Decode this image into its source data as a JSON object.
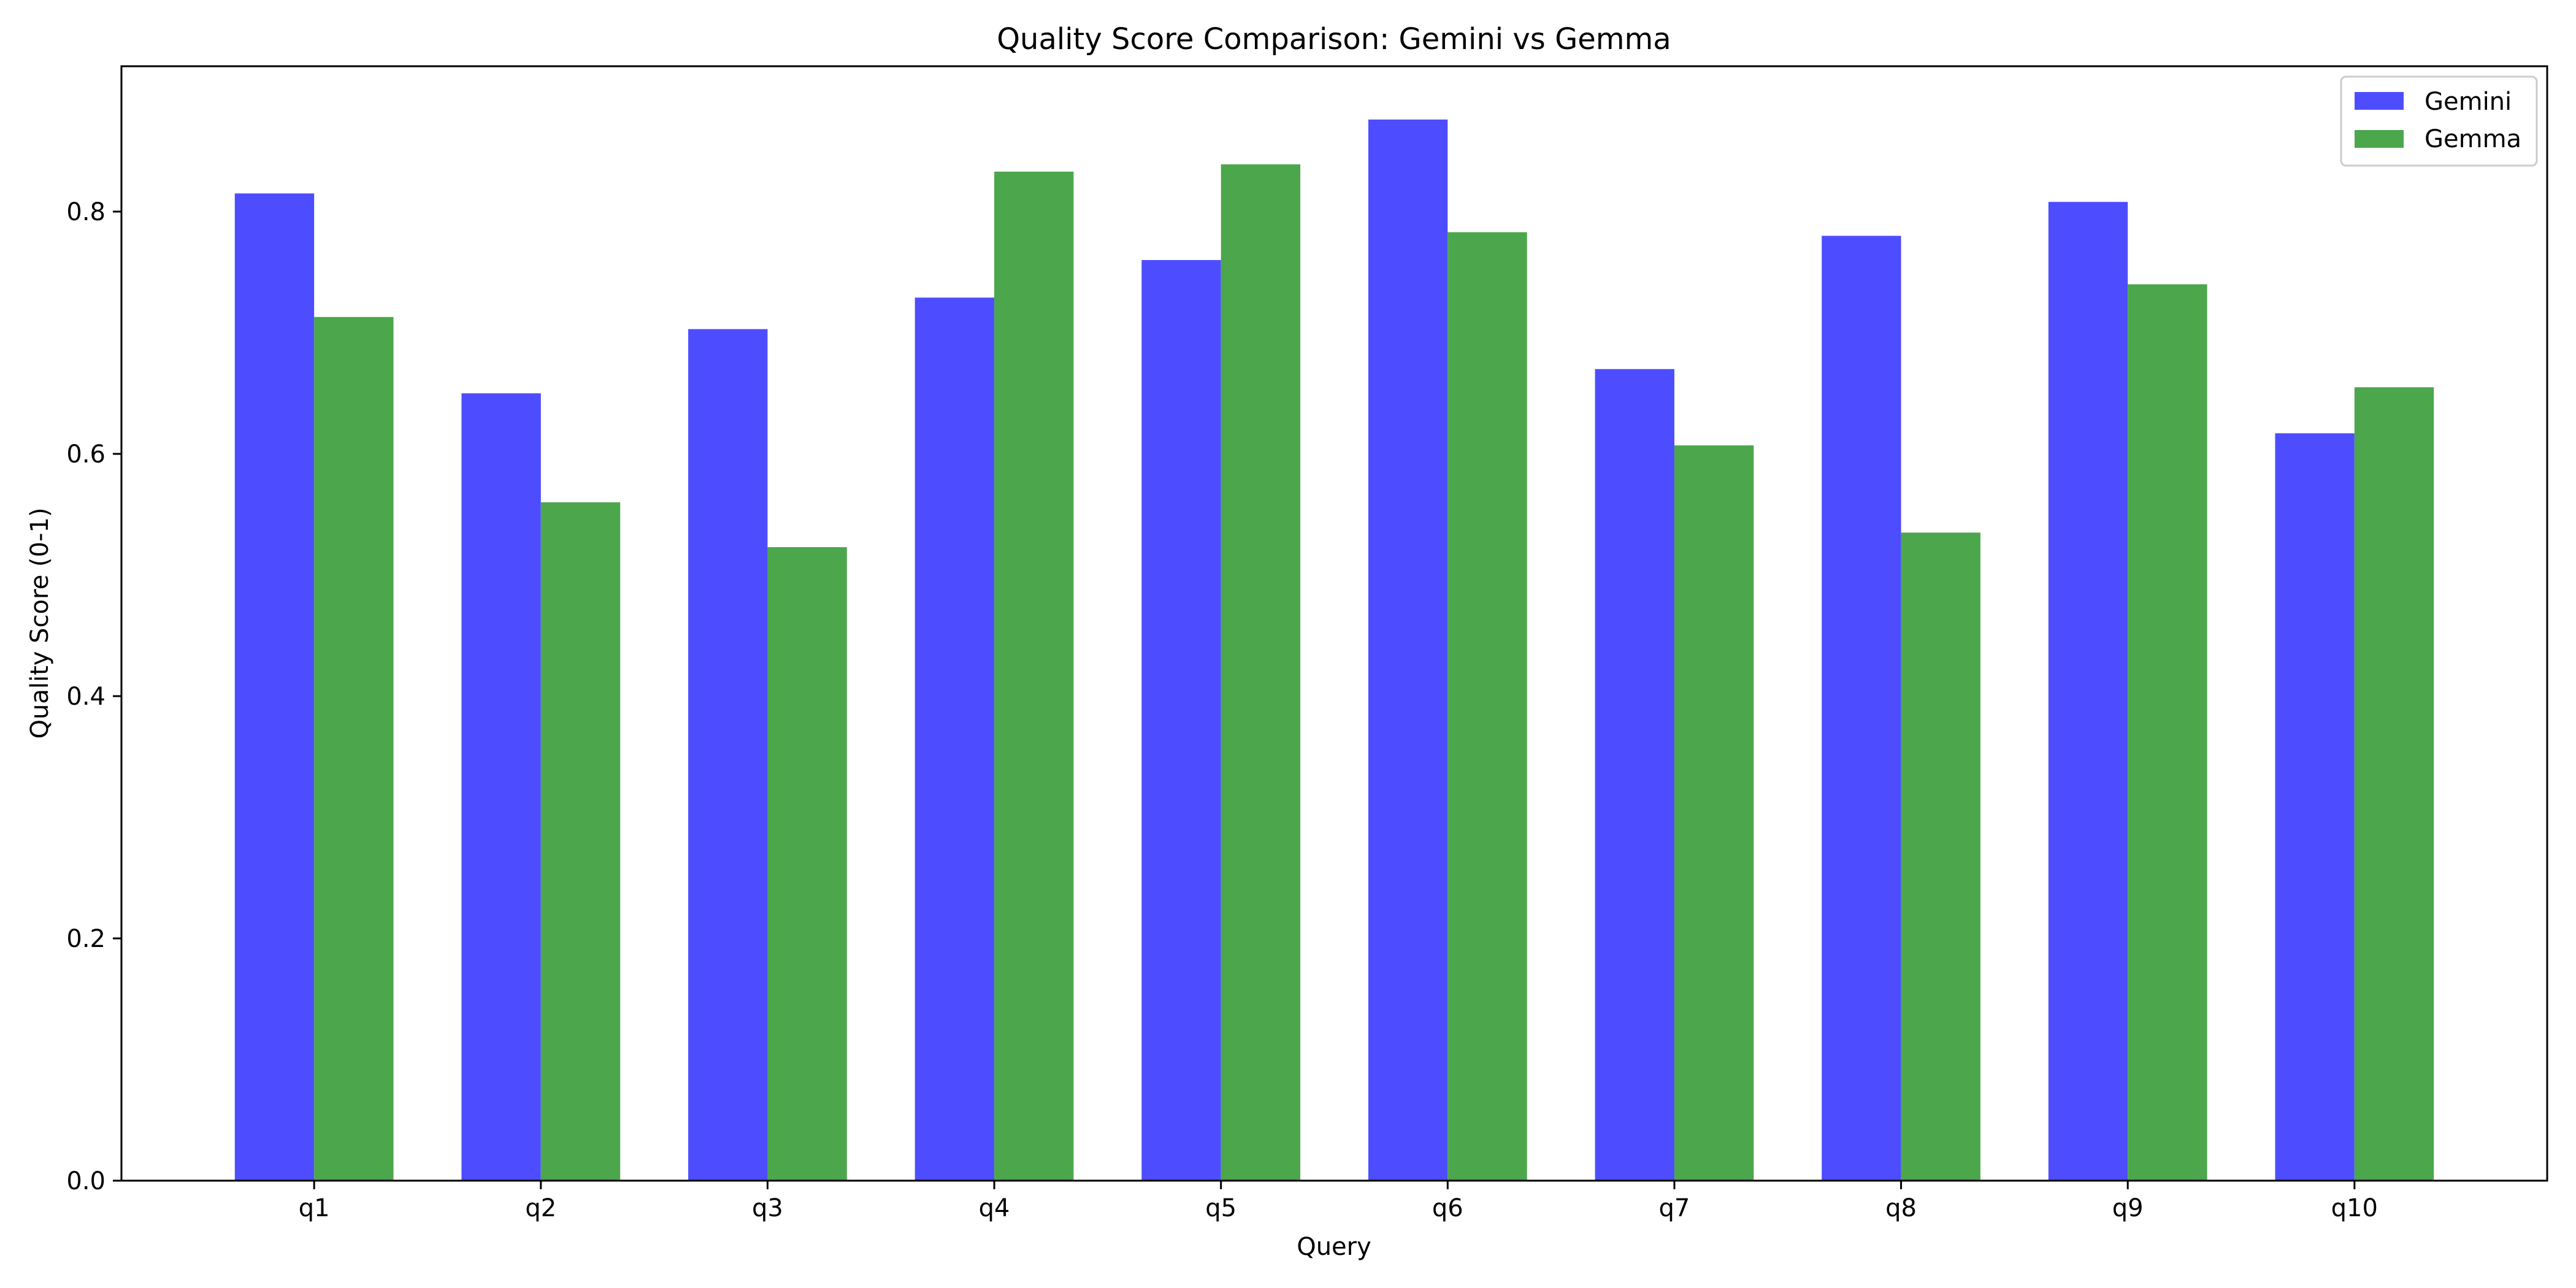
{
  "chart_data": {
    "type": "bar",
    "title": "Quality Score Comparison: Gemini vs Gemma",
    "xlabel": "Query",
    "ylabel": "Quality Score (0-1)",
    "categories": [
      "q1",
      "q2",
      "q3",
      "q4",
      "q5",
      "q6",
      "q7",
      "q8",
      "q9",
      "q10"
    ],
    "series": [
      {
        "name": "Gemini",
        "color": "#4d4dff",
        "values": [
          0.815,
          0.65,
          0.703,
          0.729,
          0.76,
          0.876,
          0.67,
          0.78,
          0.808,
          0.617
        ]
      },
      {
        "name": "Gemma",
        "color": "#4ca64c",
        "values": [
          0.713,
          0.56,
          0.523,
          0.833,
          0.839,
          0.783,
          0.607,
          0.535,
          0.74,
          0.655
        ]
      }
    ],
    "ylim": [
      0,
      0.92
    ],
    "yticks": [
      0.0,
      0.2,
      0.4,
      0.6,
      0.8
    ],
    "ytick_labels": [
      "0.0",
      "0.2",
      "0.4",
      "0.6",
      "0.8"
    ],
    "grid": false,
    "legend_position": "top-right"
  }
}
